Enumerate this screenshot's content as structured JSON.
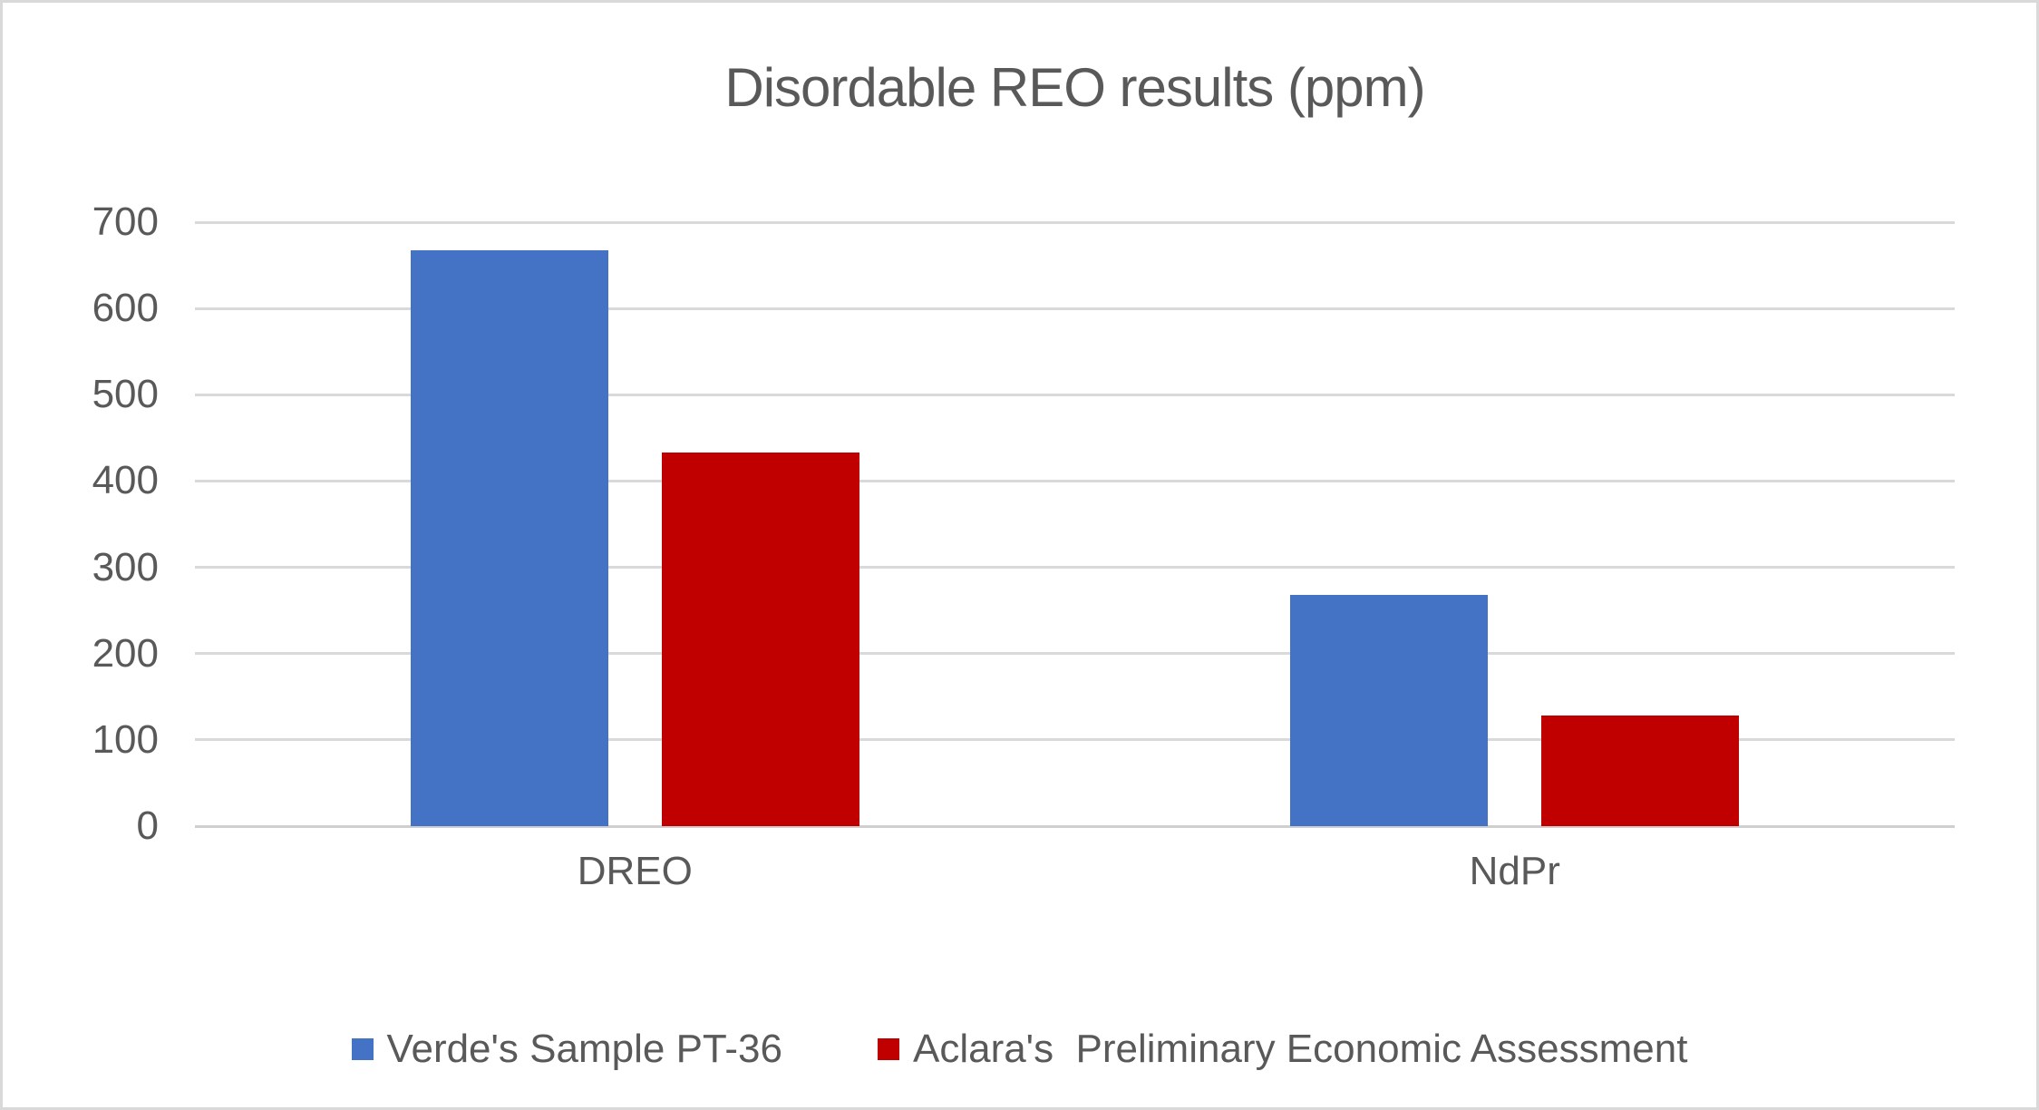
{
  "chart_data": {
    "type": "bar",
    "title": "Disordable REO results (ppm)",
    "categories": [
      "DREO",
      "NdPr"
    ],
    "series": [
      {
        "name": "Verde's Sample PT-36",
        "color": "#4472C4",
        "values": [
          667,
          268
        ]
      },
      {
        "name": "Aclara's  Preliminary Economic Assessment",
        "color": "#C00000",
        "values": [
          433,
          128
        ]
      }
    ],
    "xlabel": "",
    "ylabel": "",
    "ylim": [
      0,
      700
    ],
    "y_ticks": [
      0,
      100,
      200,
      300,
      400,
      500,
      600,
      700
    ],
    "grid": true,
    "legend_position": "bottom"
  },
  "colors": {
    "series_blue": "#4472C4",
    "series_red": "#C00000",
    "text": "#595959",
    "gridline": "#D9D9D9",
    "axis_line": "#CFCFCF",
    "page_border": "#D9D9D9",
    "background": "#FFFFFF"
  }
}
